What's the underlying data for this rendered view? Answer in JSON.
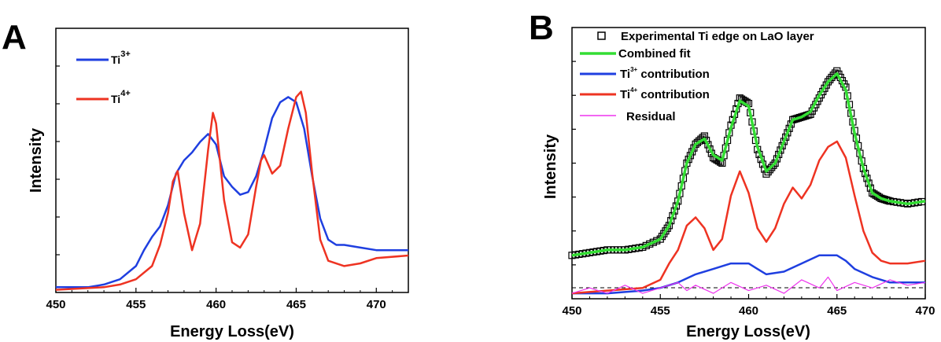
{
  "panels": {
    "a": {
      "letter": "A"
    },
    "b": {
      "letter": "B"
    }
  },
  "chart_data": [
    {
      "type": "line",
      "panel": "A",
      "xlabel": "Energy Loss(eV)",
      "ylabel": "Intensity",
      "xlim": [
        450,
        472
      ],
      "ylim": [
        0,
        1
      ],
      "x_ticks": [
        450,
        455,
        460,
        465,
        470
      ],
      "y_tick_labels": "none",
      "grid": false,
      "legend_position": "top-left",
      "series": [
        {
          "name": "Ti3+",
          "label_base": "Ti",
          "label_sup": "3+",
          "color": "#1f3fe0",
          "points": [
            [
              450,
              0.02
            ],
            [
              452,
              0.02
            ],
            [
              453,
              0.03
            ],
            [
              454,
              0.05
            ],
            [
              455,
              0.1
            ],
            [
              455.5,
              0.16
            ],
            [
              456,
              0.21
            ],
            [
              456.5,
              0.25
            ],
            [
              457,
              0.33
            ],
            [
              457.5,
              0.45
            ],
            [
              458,
              0.5
            ],
            [
              458.5,
              0.53
            ],
            [
              459,
              0.57
            ],
            [
              459.5,
              0.6
            ],
            [
              460,
              0.56
            ],
            [
              460.5,
              0.44
            ],
            [
              461,
              0.4
            ],
            [
              461.5,
              0.37
            ],
            [
              462,
              0.38
            ],
            [
              462.5,
              0.44
            ],
            [
              463,
              0.54
            ],
            [
              463.5,
              0.66
            ],
            [
              464,
              0.72
            ],
            [
              464.5,
              0.74
            ],
            [
              465,
              0.72
            ],
            [
              465.5,
              0.62
            ],
            [
              466,
              0.44
            ],
            [
              466.5,
              0.28
            ],
            [
              467,
              0.2
            ],
            [
              467.5,
              0.18
            ],
            [
              468,
              0.18
            ],
            [
              469,
              0.17
            ],
            [
              470,
              0.16
            ],
            [
              472,
              0.16
            ]
          ]
        },
        {
          "name": "Ti4+",
          "label_base": "Ti",
          "label_sup": "4+",
          "color": "#ee3322",
          "points": [
            [
              450,
              0.01
            ],
            [
              453,
              0.02
            ],
            [
              454,
              0.03
            ],
            [
              455,
              0.05
            ],
            [
              456,
              0.1
            ],
            [
              456.5,
              0.18
            ],
            [
              457,
              0.3
            ],
            [
              457.3,
              0.42
            ],
            [
              457.6,
              0.46
            ],
            [
              458,
              0.3
            ],
            [
              458.5,
              0.16
            ],
            [
              459,
              0.26
            ],
            [
              459.5,
              0.54
            ],
            [
              459.8,
              0.68
            ],
            [
              460,
              0.64
            ],
            [
              460.5,
              0.35
            ],
            [
              461,
              0.19
            ],
            [
              461.5,
              0.17
            ],
            [
              462,
              0.22
            ],
            [
              462.5,
              0.4
            ],
            [
              462.8,
              0.5
            ],
            [
              463,
              0.52
            ],
            [
              463.5,
              0.45
            ],
            [
              464,
              0.48
            ],
            [
              464.5,
              0.62
            ],
            [
              465,
              0.74
            ],
            [
              465.3,
              0.76
            ],
            [
              465.6,
              0.68
            ],
            [
              466,
              0.45
            ],
            [
              466.5,
              0.2
            ],
            [
              467,
              0.12
            ],
            [
              468,
              0.1
            ],
            [
              469,
              0.11
            ],
            [
              470,
              0.13
            ],
            [
              472,
              0.14
            ]
          ]
        }
      ]
    },
    {
      "type": "line",
      "panel": "B",
      "xlabel": "Energy Loss(eV)",
      "ylabel": "Intensity",
      "xlim": [
        450,
        470
      ],
      "ylim": [
        0,
        1
      ],
      "x_ticks": [
        450,
        455,
        460,
        465,
        470
      ],
      "y_tick_labels": "none",
      "grid": false,
      "legend_position": "top-left",
      "series": [
        {
          "name": "Experimental Ti edge on LaO layer",
          "style": "open-square-markers",
          "color": "#000000",
          "points": [
            [
              450,
              0.16
            ],
            [
              451,
              0.17
            ],
            [
              452,
              0.18
            ],
            [
              453,
              0.18
            ],
            [
              454,
              0.19
            ],
            [
              455,
              0.22
            ],
            [
              455.5,
              0.27
            ],
            [
              456,
              0.36
            ],
            [
              456.5,
              0.5
            ],
            [
              457,
              0.57
            ],
            [
              457.5,
              0.6
            ],
            [
              458,
              0.52
            ],
            [
              458.5,
              0.5
            ],
            [
              459,
              0.64
            ],
            [
              459.5,
              0.74
            ],
            [
              460,
              0.72
            ],
            [
              460.5,
              0.55
            ],
            [
              461,
              0.46
            ],
            [
              461.5,
              0.5
            ],
            [
              462,
              0.58
            ],
            [
              462.5,
              0.66
            ],
            [
              463,
              0.67
            ],
            [
              463.5,
              0.68
            ],
            [
              464,
              0.74
            ],
            [
              464.5,
              0.8
            ],
            [
              465,
              0.84
            ],
            [
              465.5,
              0.78
            ],
            [
              466,
              0.62
            ],
            [
              466.5,
              0.48
            ],
            [
              467,
              0.39
            ],
            [
              467.5,
              0.37
            ],
            [
              468,
              0.36
            ],
            [
              469,
              0.35
            ],
            [
              470,
              0.36
            ]
          ]
        },
        {
          "name": "Combined fit",
          "color": "#33dd33",
          "points": [
            [
              450,
              0.16
            ],
            [
              451,
              0.17
            ],
            [
              452,
              0.18
            ],
            [
              453,
              0.18
            ],
            [
              454,
              0.19
            ],
            [
              455,
              0.22
            ],
            [
              455.5,
              0.27
            ],
            [
              456,
              0.36
            ],
            [
              456.5,
              0.5
            ],
            [
              457,
              0.57
            ],
            [
              457.5,
              0.59
            ],
            [
              458,
              0.53
            ],
            [
              458.5,
              0.51
            ],
            [
              459,
              0.63
            ],
            [
              459.5,
              0.73
            ],
            [
              460,
              0.71
            ],
            [
              460.5,
              0.56
            ],
            [
              461,
              0.47
            ],
            [
              461.5,
              0.5
            ],
            [
              462,
              0.58
            ],
            [
              462.5,
              0.66
            ],
            [
              463,
              0.67
            ],
            [
              463.5,
              0.69
            ],
            [
              464,
              0.75
            ],
            [
              464.5,
              0.8
            ],
            [
              465,
              0.83
            ],
            [
              465.5,
              0.77
            ],
            [
              466,
              0.61
            ],
            [
              466.5,
              0.48
            ],
            [
              467,
              0.39
            ],
            [
              467.5,
              0.37
            ],
            [
              468,
              0.36
            ],
            [
              469,
              0.35
            ],
            [
              470,
              0.36
            ]
          ]
        },
        {
          "name": "Ti3+ contribution",
          "label_base": "Ti",
          "label_sup": "3+",
          "label_rest": " contribution",
          "color": "#1f3fe0",
          "points": [
            [
              450,
              0.02
            ],
            [
              452,
              0.02
            ],
            [
              454,
              0.03
            ],
            [
              455,
              0.04
            ],
            [
              456,
              0.06
            ],
            [
              457,
              0.09
            ],
            [
              458,
              0.11
            ],
            [
              459,
              0.13
            ],
            [
              460,
              0.13
            ],
            [
              460.5,
              0.11
            ],
            [
              461,
              0.09
            ],
            [
              462,
              0.1
            ],
            [
              463,
              0.13
            ],
            [
              464,
              0.16
            ],
            [
              465,
              0.16
            ],
            [
              465.5,
              0.14
            ],
            [
              466,
              0.11
            ],
            [
              467,
              0.08
            ],
            [
              468,
              0.06
            ],
            [
              469,
              0.06
            ],
            [
              470,
              0.06
            ]
          ]
        },
        {
          "name": "Ti4+ contribution",
          "label_base": "Ti",
          "label_sup": "4+",
          "label_rest": " contribution",
          "color": "#ee3322",
          "points": [
            [
              450,
              0.02
            ],
            [
              452,
              0.03
            ],
            [
              454,
              0.04
            ],
            [
              455,
              0.07
            ],
            [
              455.5,
              0.13
            ],
            [
              456,
              0.18
            ],
            [
              456.5,
              0.27
            ],
            [
              457,
              0.3
            ],
            [
              457.5,
              0.26
            ],
            [
              458,
              0.18
            ],
            [
              458.5,
              0.22
            ],
            [
              459,
              0.38
            ],
            [
              459.5,
              0.47
            ],
            [
              460,
              0.39
            ],
            [
              460.5,
              0.26
            ],
            [
              461,
              0.21
            ],
            [
              461.5,
              0.26
            ],
            [
              462,
              0.35
            ],
            [
              462.5,
              0.41
            ],
            [
              463,
              0.37
            ],
            [
              463.5,
              0.42
            ],
            [
              464,
              0.51
            ],
            [
              464.5,
              0.56
            ],
            [
              465,
              0.58
            ],
            [
              465.5,
              0.52
            ],
            [
              466,
              0.38
            ],
            [
              466.5,
              0.25
            ],
            [
              467,
              0.17
            ],
            [
              467.5,
              0.14
            ],
            [
              468,
              0.13
            ],
            [
              469,
              0.13
            ],
            [
              470,
              0.14
            ]
          ]
        },
        {
          "name": "Residual",
          "color": "#ee33ee",
          "points": [
            [
              450,
              0.02
            ],
            [
              451,
              0.04
            ],
            [
              452,
              0.02
            ],
            [
              453,
              0.05
            ],
            [
              454,
              0.02
            ],
            [
              455,
              0.04
            ],
            [
              456,
              0.06
            ],
            [
              456.5,
              0.03
            ],
            [
              457,
              0.05
            ],
            [
              458,
              0.02
            ],
            [
              459,
              0.06
            ],
            [
              460,
              0.03
            ],
            [
              461,
              0.05
            ],
            [
              462,
              0.02
            ],
            [
              463,
              0.07
            ],
            [
              464,
              0.04
            ],
            [
              464.5,
              0.08
            ],
            [
              465,
              0.03
            ],
            [
              466,
              0.06
            ],
            [
              467,
              0.04
            ],
            [
              468,
              0.07
            ],
            [
              469,
              0.05
            ],
            [
              470,
              0.06
            ]
          ]
        }
      ]
    }
  ]
}
